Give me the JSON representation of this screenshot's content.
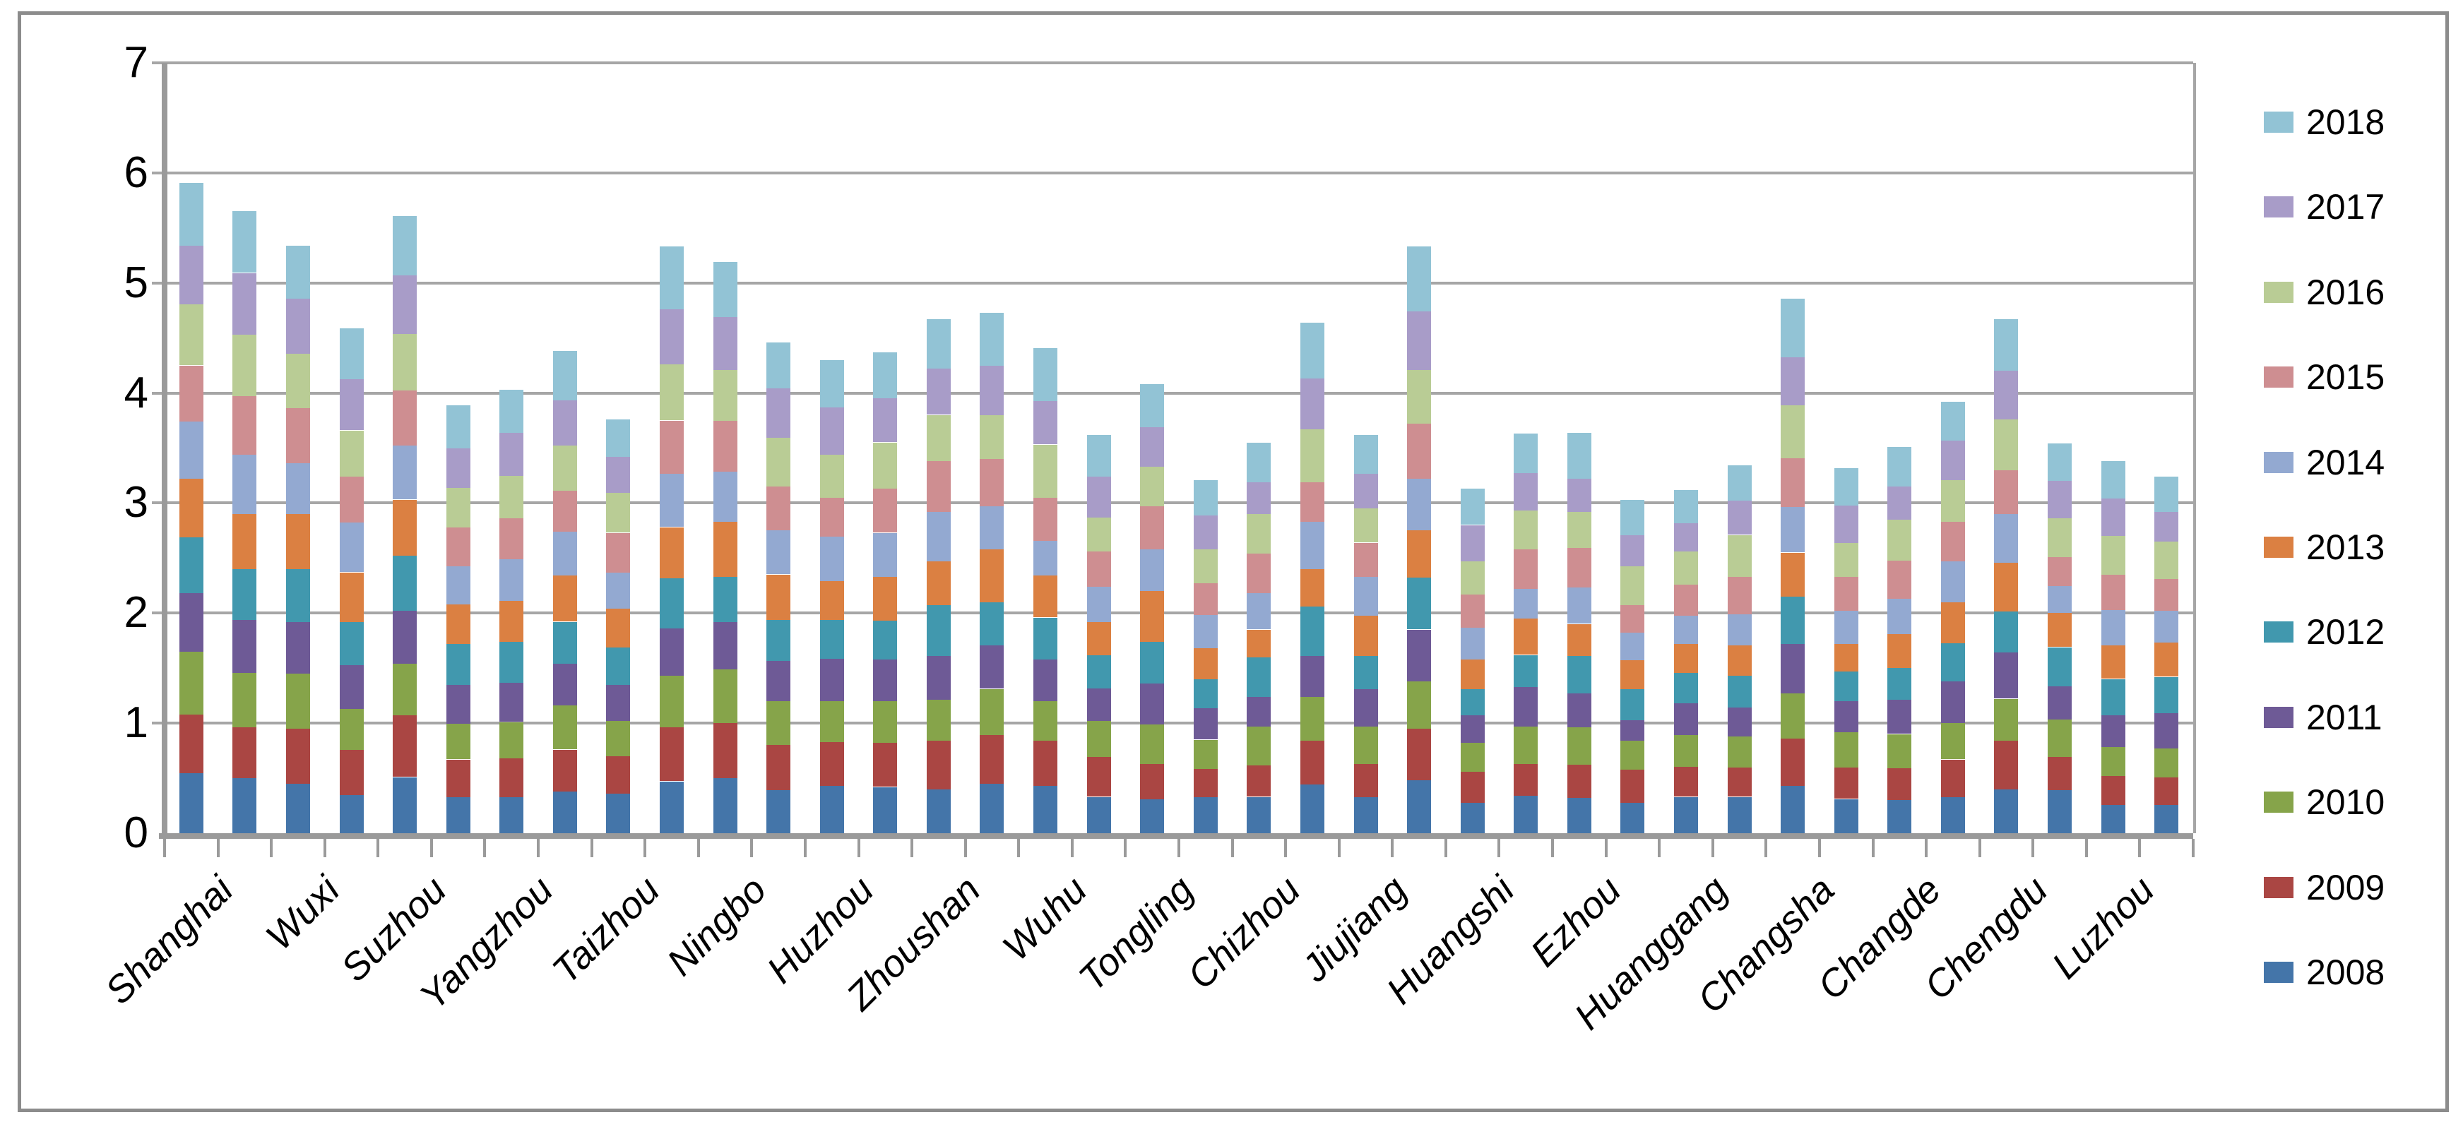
{
  "chart_data": {
    "type": "bar",
    "stacked": true,
    "title": "",
    "xlabel": "",
    "ylabel": "",
    "ylim": [
      0,
      7
    ],
    "yticks": [
      "0",
      "1",
      "2",
      "3",
      "4",
      "5",
      "6",
      "7"
    ],
    "grid": true,
    "legend_position": "right",
    "legend_order": [
      "2018",
      "2017",
      "2016",
      "2015",
      "2014",
      "2013",
      "2012",
      "2011",
      "2010",
      "2009",
      "2008"
    ],
    "axis_color": "#9a9a9a",
    "gridline_color": "#a6a6a6",
    "frame_color": "#8c8c8c",
    "categories": [
      "Shanghai",
      "",
      "Wuxi",
      "",
      "Suzhou",
      "",
      "Yangzhou",
      "",
      "Taizhou",
      "",
      "Ningbo",
      "",
      "Huzhou",
      "",
      "Zhoushan",
      "",
      "Wuhu",
      "",
      "Tongling",
      "",
      "Chizhou",
      "",
      "Jiujiang",
      "",
      "Huangshi",
      "",
      "Ezhou",
      "",
      "Huanggang",
      "",
      "Changsha",
      "",
      "Changde",
      "",
      "Chengdu",
      "",
      "Luzhou",
      ""
    ],
    "series": [
      {
        "name": "2008",
        "color": "#4475A9",
        "values": [
          0.55,
          0.5,
          0.45,
          0.35,
          0.51,
          0.33,
          0.33,
          0.38,
          0.36,
          0.47,
          0.5,
          0.39,
          0.43,
          0.42,
          0.4,
          0.45,
          0.43,
          0.33,
          0.31,
          0.33,
          0.33,
          0.44,
          0.33,
          0.48,
          0.28,
          0.34,
          0.32,
          0.28,
          0.33,
          0.33,
          0.43,
          0.31,
          0.3,
          0.33,
          0.4,
          0.39,
          0.26,
          0.26
        ]
      },
      {
        "name": "2009",
        "color": "#AA4643",
        "values": [
          0.53,
          0.46,
          0.5,
          0.41,
          0.56,
          0.34,
          0.35,
          0.38,
          0.34,
          0.49,
          0.5,
          0.41,
          0.4,
          0.4,
          0.44,
          0.44,
          0.41,
          0.36,
          0.32,
          0.26,
          0.29,
          0.4,
          0.3,
          0.47,
          0.28,
          0.29,
          0.3,
          0.3,
          0.27,
          0.27,
          0.43,
          0.29,
          0.29,
          0.34,
          0.44,
          0.3,
          0.26,
          0.25
        ]
      },
      {
        "name": "2010",
        "color": "#86A44A",
        "values": [
          0.57,
          0.5,
          0.5,
          0.37,
          0.47,
          0.33,
          0.33,
          0.4,
          0.32,
          0.47,
          0.49,
          0.4,
          0.37,
          0.38,
          0.37,
          0.42,
          0.36,
          0.33,
          0.36,
          0.26,
          0.35,
          0.4,
          0.34,
          0.43,
          0.26,
          0.34,
          0.34,
          0.26,
          0.29,
          0.28,
          0.41,
          0.32,
          0.31,
          0.33,
          0.38,
          0.34,
          0.26,
          0.26
        ]
      },
      {
        "name": "2011",
        "color": "#6E5A96",
        "values": [
          0.53,
          0.48,
          0.47,
          0.4,
          0.48,
          0.35,
          0.36,
          0.38,
          0.33,
          0.43,
          0.43,
          0.37,
          0.39,
          0.38,
          0.4,
          0.4,
          0.38,
          0.3,
          0.37,
          0.29,
          0.27,
          0.37,
          0.34,
          0.47,
          0.25,
          0.36,
          0.31,
          0.19,
          0.29,
          0.26,
          0.45,
          0.28,
          0.31,
          0.38,
          0.42,
          0.31,
          0.29,
          0.32
        ]
      },
      {
        "name": "2012",
        "color": "#4198AE",
        "values": [
          0.51,
          0.46,
          0.48,
          0.39,
          0.5,
          0.37,
          0.37,
          0.38,
          0.34,
          0.46,
          0.41,
          0.37,
          0.35,
          0.35,
          0.46,
          0.39,
          0.38,
          0.3,
          0.38,
          0.26,
          0.36,
          0.45,
          0.3,
          0.47,
          0.24,
          0.29,
          0.34,
          0.28,
          0.28,
          0.29,
          0.43,
          0.27,
          0.29,
          0.35,
          0.38,
          0.35,
          0.33,
          0.33
        ]
      },
      {
        "name": "2013",
        "color": "#DB8042",
        "values": [
          0.53,
          0.5,
          0.5,
          0.45,
          0.51,
          0.36,
          0.37,
          0.42,
          0.35,
          0.46,
          0.5,
          0.41,
          0.35,
          0.4,
          0.4,
          0.48,
          0.38,
          0.3,
          0.46,
          0.28,
          0.25,
          0.34,
          0.37,
          0.43,
          0.27,
          0.33,
          0.29,
          0.26,
          0.26,
          0.28,
          0.4,
          0.25,
          0.31,
          0.37,
          0.44,
          0.31,
          0.31,
          0.31
        ]
      },
      {
        "name": "2014",
        "color": "#93A9D1",
        "values": [
          0.52,
          0.54,
          0.46,
          0.45,
          0.49,
          0.35,
          0.38,
          0.4,
          0.33,
          0.49,
          0.46,
          0.4,
          0.41,
          0.4,
          0.45,
          0.39,
          0.32,
          0.32,
          0.38,
          0.3,
          0.33,
          0.43,
          0.35,
          0.47,
          0.29,
          0.27,
          0.33,
          0.25,
          0.26,
          0.28,
          0.42,
          0.3,
          0.32,
          0.37,
          0.44,
          0.25,
          0.32,
          0.29
        ]
      },
      {
        "name": "2015",
        "color": "#CE8E91",
        "values": [
          0.51,
          0.53,
          0.5,
          0.42,
          0.5,
          0.35,
          0.37,
          0.37,
          0.36,
          0.48,
          0.46,
          0.4,
          0.35,
          0.4,
          0.46,
          0.43,
          0.39,
          0.32,
          0.39,
          0.29,
          0.36,
          0.36,
          0.31,
          0.5,
          0.3,
          0.36,
          0.36,
          0.25,
          0.28,
          0.34,
          0.44,
          0.31,
          0.35,
          0.36,
          0.4,
          0.26,
          0.32,
          0.29
        ]
      },
      {
        "name": "2016",
        "color": "#B9CC95",
        "values": [
          0.56,
          0.56,
          0.5,
          0.42,
          0.52,
          0.36,
          0.39,
          0.41,
          0.36,
          0.51,
          0.46,
          0.44,
          0.39,
          0.42,
          0.42,
          0.4,
          0.48,
          0.31,
          0.36,
          0.31,
          0.36,
          0.48,
          0.31,
          0.49,
          0.3,
          0.35,
          0.33,
          0.36,
          0.3,
          0.38,
          0.48,
          0.31,
          0.37,
          0.38,
          0.46,
          0.35,
          0.35,
          0.34
        ]
      },
      {
        "name": "2017",
        "color": "#A89CC8",
        "values": [
          0.53,
          0.56,
          0.5,
          0.47,
          0.53,
          0.36,
          0.39,
          0.41,
          0.33,
          0.5,
          0.48,
          0.45,
          0.43,
          0.4,
          0.42,
          0.45,
          0.4,
          0.37,
          0.36,
          0.31,
          0.29,
          0.46,
          0.32,
          0.53,
          0.33,
          0.34,
          0.3,
          0.28,
          0.26,
          0.31,
          0.44,
          0.34,
          0.3,
          0.36,
          0.44,
          0.34,
          0.34,
          0.27
        ]
      },
      {
        "name": "2018",
        "color": "#92C3D5",
        "values": [
          0.57,
          0.56,
          0.48,
          0.46,
          0.54,
          0.39,
          0.39,
          0.45,
          0.34,
          0.57,
          0.5,
          0.42,
          0.43,
          0.42,
          0.45,
          0.48,
          0.48,
          0.38,
          0.39,
          0.32,
          0.36,
          0.51,
          0.35,
          0.59,
          0.33,
          0.36,
          0.42,
          0.32,
          0.3,
          0.32,
          0.53,
          0.34,
          0.36,
          0.35,
          0.47,
          0.34,
          0.34,
          0.32
        ]
      }
    ]
  }
}
